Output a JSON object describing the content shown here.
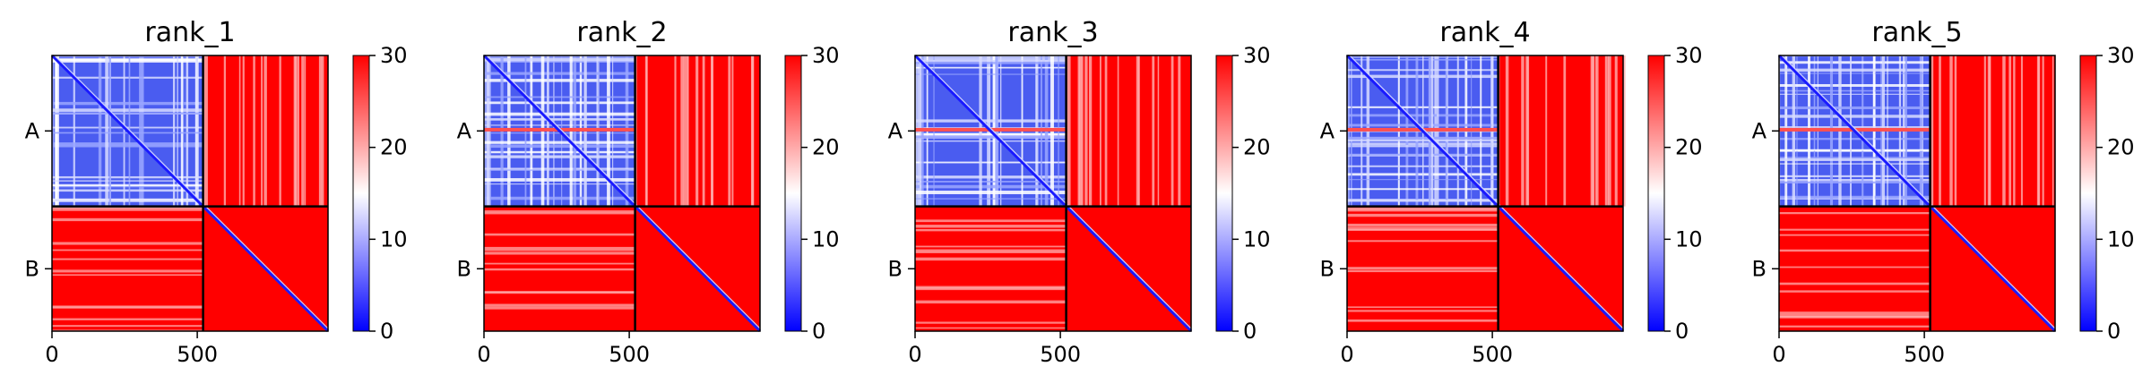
{
  "chart_data": {
    "type": "heatmap",
    "colormap": "bwr",
    "colorbar": {
      "range": [
        0,
        30
      ],
      "ticks": [
        "0",
        "10",
        "20",
        "30"
      ]
    },
    "xticks": [
      "0",
      "500"
    ],
    "yticks": [
      "A",
      "B"
    ],
    "x_range": [
      0,
      950
    ],
    "chain_boundary": 520,
    "chains": [
      {
        "name": "A",
        "start": 0,
        "end": 520
      },
      {
        "name": "B",
        "start": 520,
        "end": 950
      }
    ],
    "panels": [
      {
        "title": "rank_1"
      },
      {
        "title": "rank_2"
      },
      {
        "title": "rank_3"
      },
      {
        "title": "rank_4"
      },
      {
        "title": "rank_5"
      }
    ],
    "block_level_values": {
      "A-A": 8,
      "A-B": 28,
      "B-A": 29,
      "B-B": 30,
      "diagonal": 0
    }
  }
}
